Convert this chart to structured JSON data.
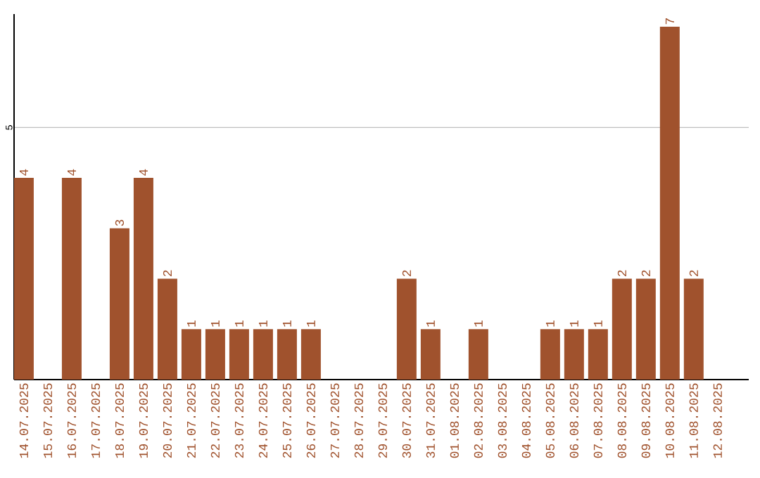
{
  "chart_data": {
    "type": "bar",
    "categories": [
      "14.07.2025",
      "15.07.2025",
      "16.07.2025",
      "17.07.2025",
      "18.07.2025",
      "19.07.2025",
      "20.07.2025",
      "21.07.2025",
      "22.07.2025",
      "23.07.2025",
      "24.07.2025",
      "25.07.2025",
      "26.07.2025",
      "27.07.2025",
      "28.07.2025",
      "29.07.2025",
      "30.07.2025",
      "31.07.2025",
      "01.08.2025",
      "02.08.2025",
      "03.08.2025",
      "04.08.2025",
      "05.08.2025",
      "06.08.2025",
      "07.08.2025",
      "08.08.2025",
      "09.08.2025",
      "10.08.2025",
      "11.08.2025",
      "12.08.2025"
    ],
    "values": [
      4,
      0,
      4,
      0,
      3,
      4,
      2,
      1,
      1,
      1,
      1,
      1,
      1,
      0,
      0,
      0,
      2,
      1,
      0,
      1,
      0,
      0,
      1,
      1,
      1,
      2,
      2,
      7,
      2,
      0
    ],
    "value_labels": [
      "4",
      null,
      "4",
      null,
      "3",
      "4",
      "2",
      "1",
      "1",
      "1",
      "1",
      "1",
      "1",
      null,
      null,
      null,
      "2",
      "1",
      null,
      "1",
      null,
      null,
      "1",
      "1",
      "1",
      "2",
      "2",
      "7",
      "2",
      null
    ],
    "color": "#a0522d",
    "ylim": [
      0,
      7.25
    ],
    "yticks": [
      5
    ],
    "grid": "y"
  }
}
